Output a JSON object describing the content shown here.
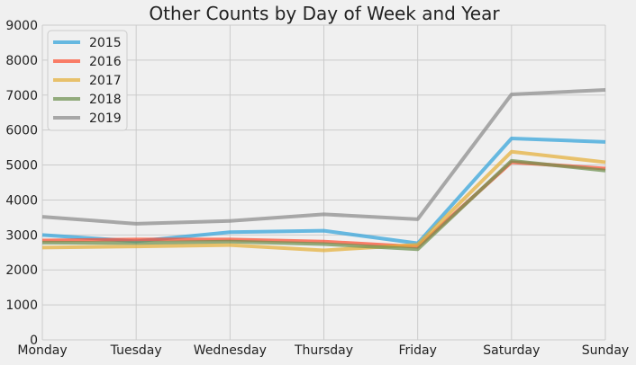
{
  "chart_data": {
    "type": "line",
    "title": "Other Counts by Day of Week and Year",
    "xlabel": "",
    "ylabel": "",
    "categories": [
      "Monday",
      "Tuesday",
      "Wednesday",
      "Thursday",
      "Friday",
      "Saturday",
      "Sunday"
    ],
    "ylim": [
      0,
      9000
    ],
    "yticks": [
      0,
      1000,
      2000,
      3000,
      4000,
      5000,
      6000,
      7000,
      8000,
      9000
    ],
    "grid": true,
    "legend_position": "top-left",
    "series": [
      {
        "name": "2015",
        "color": "#30a2da",
        "values": [
          3000,
          2820,
          3080,
          3120,
          2760,
          5760,
          5660
        ]
      },
      {
        "name": "2016",
        "color": "#fc4f30",
        "values": [
          2840,
          2870,
          2870,
          2810,
          2660,
          5080,
          4900
        ]
      },
      {
        "name": "2017",
        "color": "#e5ae38",
        "values": [
          2640,
          2670,
          2710,
          2560,
          2720,
          5380,
          5080
        ]
      },
      {
        "name": "2018",
        "color": "#6d904f",
        "values": [
          2780,
          2770,
          2810,
          2740,
          2590,
          5120,
          4840
        ]
      },
      {
        "name": "2019",
        "color": "#8b8b8b",
        "values": [
          3520,
          3320,
          3400,
          3590,
          3450,
          7020,
          7150
        ]
      }
    ]
  }
}
